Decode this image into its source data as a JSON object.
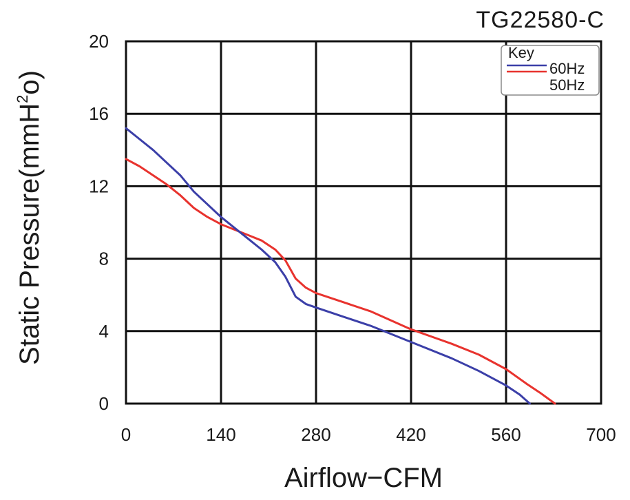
{
  "chart_data": {
    "type": "line",
    "title": "TG22580-C",
    "xlabel": "Airflow−CFM",
    "ylabel_parts": {
      "main": "Static Pressure(mmH",
      "sup": "2",
      "tail": "o)"
    },
    "xlim": [
      0,
      700
    ],
    "ylim": [
      0,
      20
    ],
    "x_ticks": [
      0,
      140,
      280,
      420,
      560,
      700
    ],
    "x_tick_labels": [
      "0",
      "140",
      "280",
      "420",
      "560",
      "700"
    ],
    "y_ticks": [
      0,
      4,
      8,
      12,
      16,
      20
    ],
    "y_tick_labels": [
      "0",
      "4",
      "8",
      "12",
      "16",
      "20"
    ],
    "grid": true,
    "legend": {
      "title": "Key",
      "placement": "top-right"
    },
    "series": [
      {
        "name": "60Hz",
        "color": "#3b3fa8",
        "points": [
          [
            0,
            15.2
          ],
          [
            20,
            14.6
          ],
          [
            40,
            14.0
          ],
          [
            60,
            13.3
          ],
          [
            80,
            12.6
          ],
          [
            100,
            11.7
          ],
          [
            120,
            11.0
          ],
          [
            140,
            10.3
          ],
          [
            160,
            9.7
          ],
          [
            180,
            9.1
          ],
          [
            200,
            8.5
          ],
          [
            220,
            7.8
          ],
          [
            235,
            7.0
          ],
          [
            250,
            5.9
          ],
          [
            265,
            5.5
          ],
          [
            280,
            5.3
          ],
          [
            320,
            4.8
          ],
          [
            360,
            4.3
          ],
          [
            420,
            3.4
          ],
          [
            480,
            2.5
          ],
          [
            520,
            1.8
          ],
          [
            560,
            1.0
          ],
          [
            580,
            0.5
          ],
          [
            595,
            0
          ]
        ]
      },
      {
        "name": "50Hz",
        "color": "#e8332e",
        "points": [
          [
            0,
            13.5
          ],
          [
            20,
            13.1
          ],
          [
            40,
            12.6
          ],
          [
            60,
            12.1
          ],
          [
            80,
            11.5
          ],
          [
            100,
            10.8
          ],
          [
            120,
            10.3
          ],
          [
            140,
            9.9
          ],
          [
            160,
            9.6
          ],
          [
            180,
            9.3
          ],
          [
            200,
            9.0
          ],
          [
            220,
            8.5
          ],
          [
            235,
            7.9
          ],
          [
            250,
            6.9
          ],
          [
            265,
            6.4
          ],
          [
            280,
            6.1
          ],
          [
            320,
            5.6
          ],
          [
            360,
            5.1
          ],
          [
            420,
            4.1
          ],
          [
            480,
            3.3
          ],
          [
            520,
            2.7
          ],
          [
            560,
            1.9
          ],
          [
            590,
            1.1
          ],
          [
            610,
            0.6
          ],
          [
            632,
            0
          ]
        ]
      }
    ]
  }
}
